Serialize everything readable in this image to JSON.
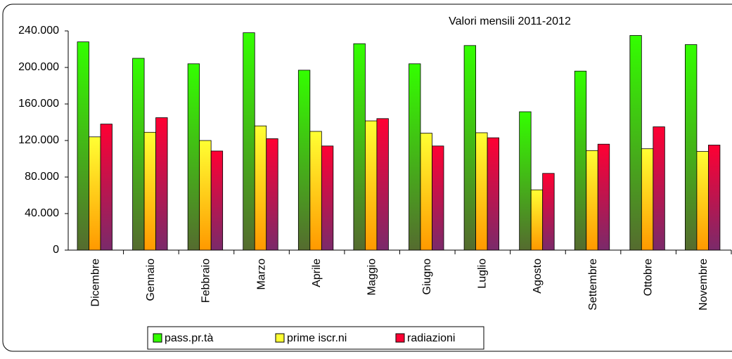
{
  "chart_data": {
    "type": "bar",
    "title": "Valori mensili 2011-2012",
    "categories": [
      "Dicembre",
      "Gennaio",
      "Febbraio",
      "Marzo",
      "Aprile",
      "Maggio",
      "Giugno",
      "Luglio",
      "Agosto",
      "Settembre",
      "Ottobre",
      "Novembre"
    ],
    "series": [
      {
        "name": "pass.pr.tà",
        "color": "#33ff00",
        "values": [
          228000,
          210000,
          204000,
          238000,
          197000,
          226000,
          204000,
          224000,
          151500,
          196000,
          235000,
          225000
        ]
      },
      {
        "name": "prime iscr.ni",
        "color": "#ffff33",
        "values": [
          124000,
          129000,
          120000,
          136000,
          130000,
          141500,
          128000,
          128500,
          66000,
          109000,
          111000,
          108000
        ]
      },
      {
        "name": "radiazioni",
        "color": "#ff0033",
        "values": [
          138000,
          145000,
          108500,
          122000,
          114000,
          144000,
          114000,
          123000,
          84000,
          116000,
          135000,
          115000
        ]
      }
    ],
    "ylim": [
      0,
      240000
    ],
    "yticks": [
      0,
      {
        "value": 40000,
        "label": "40.000"
      },
      {
        "value": 80000,
        "label": "80.000"
      },
      {
        "value": 120000,
        "label": "120.000"
      },
      {
        "value": 160000,
        "label": "160.000"
      },
      {
        "value": 200000,
        "label": "200.000"
      },
      {
        "value": 240000,
        "label": "240.000"
      }
    ],
    "legend": "bottom"
  }
}
